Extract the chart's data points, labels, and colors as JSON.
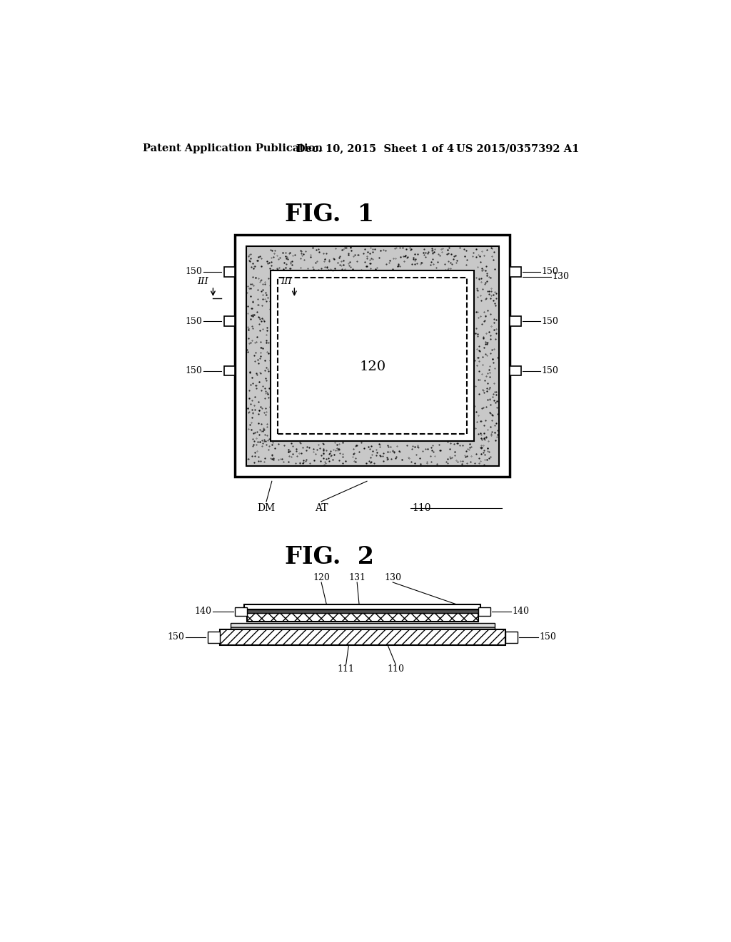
{
  "bg_color": "#ffffff",
  "header_left": "Patent Application Publication",
  "header_mid": "Dec. 10, 2015  Sheet 1 of 4",
  "header_right": "US 2015/0357392 A1",
  "fig1_title": "FIG.  1",
  "fig2_title": "FIG.  2",
  "fig1_label_120": "120",
  "fig1_label_130": "130",
  "fig1_label_110": "110",
  "fig1_label_DM": "DM",
  "fig1_label_AT": "AT",
  "fig2_label_120": "120",
  "fig2_label_130": "130",
  "fig2_label_131": "131",
  "fig2_label_140": "140",
  "fig2_label_150": "150",
  "fig2_label_110": "110",
  "fig2_label_111": "111"
}
